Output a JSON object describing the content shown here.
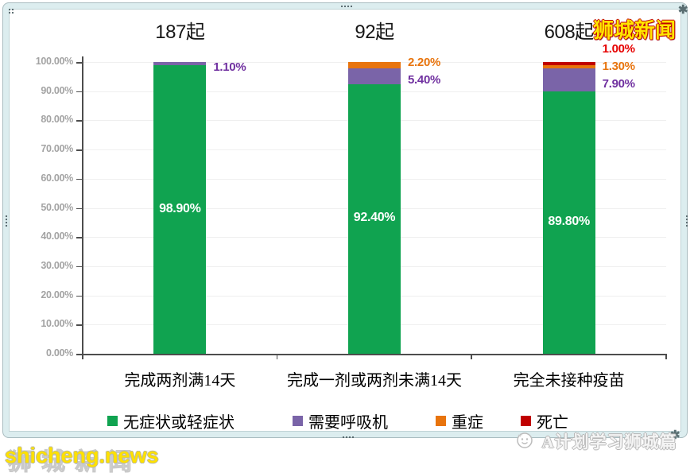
{
  "watermarks": {
    "top_right": "狮城新闻",
    "bottom_left": "shicheng.news",
    "bottom_left_back": "狮城新闻",
    "bottom_right": "A计划学习狮城篇"
  },
  "chart_data": {
    "type": "bar",
    "stacked": true,
    "unit": "%",
    "group_titles": [
      "187起",
      "92起",
      "608起"
    ],
    "categories": [
      "完成两剂满14天",
      "完成一剂或两剂未满14天",
      "完全未接种疫苗"
    ],
    "series": [
      {
        "key": "asymptomatic-or-mild",
        "name": "无症状或轻症状",
        "color": "#10A350",
        "label_color": "#FFFFFF",
        "values": [
          98.9,
          92.4,
          89.8
        ],
        "labels": [
          "98.90%",
          "92.40%",
          "89.80%"
        ]
      },
      {
        "key": "needs-ventilator",
        "name": "需要呼吸机",
        "color": "#7A64A8",
        "label_color": "#7030A0",
        "values": [
          1.1,
          5.4,
          7.9
        ],
        "labels": [
          "1.10%",
          "5.40%",
          "7.90%"
        ]
      },
      {
        "key": "severe",
        "name": "重症",
        "color": "#E8740D",
        "label_color": "#E8740D",
        "values": [
          0,
          2.2,
          1.3
        ],
        "labels": [
          "",
          "2.20%",
          "1.30%"
        ]
      },
      {
        "key": "death",
        "name": "死亡",
        "color": "#C00000",
        "label_color": "#E60000",
        "values": [
          0,
          0,
          1.0
        ],
        "labels": [
          "",
          "",
          "1.00%"
        ]
      }
    ],
    "ylim": [
      0,
      100
    ],
    "ytick_step": 10,
    "yticks": [
      "0.00%",
      "10.00%",
      "20.00%",
      "30.00%",
      "40.00%",
      "50.00%",
      "60.00%",
      "70.00%",
      "80.00%",
      "90.00%",
      "100.00%"
    ],
    "grid": true,
    "legend_position": "bottom"
  }
}
